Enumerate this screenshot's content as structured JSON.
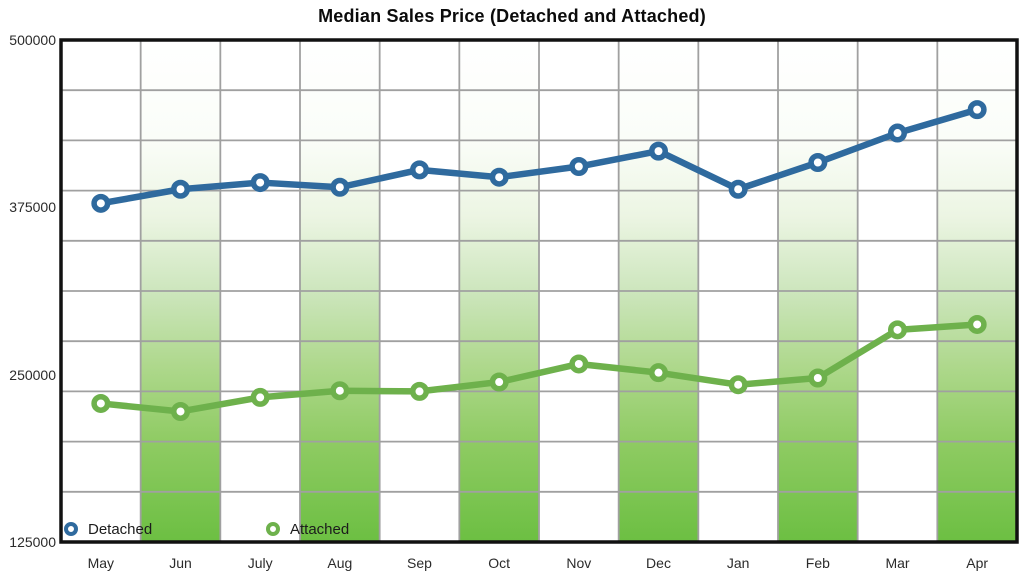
{
  "chart_data": {
    "type": "line",
    "title": "Median Sales Price (Detached and Attached)",
    "categories": [
      "May",
      "Jun",
      "July",
      "Aug",
      "Sep",
      "Oct",
      "Nov",
      "Dec",
      "Jan",
      "Feb",
      "Mar",
      "Apr"
    ],
    "series": [
      {
        "name": "Detached",
        "color": "#2f6a9e",
        "values": [
          378000,
          388500,
          393500,
          390000,
          403000,
          397500,
          405500,
          417000,
          388500,
          408500,
          430500,
          448000
        ]
      },
      {
        "name": "Attached",
        "color": "#6eb14c",
        "values": [
          228500,
          222500,
          233000,
          238000,
          237500,
          244500,
          258000,
          251500,
          242500,
          247500,
          283500,
          287500
        ]
      }
    ],
    "y_axis": {
      "min": 125000,
      "max": 500000,
      "labeled_ticks": [
        500000,
        375000,
        250000,
        125000
      ],
      "gridline_step": 37500
    },
    "legend": {
      "position": "inside-bottom-left"
    },
    "background_bands": {
      "on_categories": [
        "Jun",
        "Aug",
        "Oct",
        "Dec",
        "Feb",
        "Apr"
      ],
      "gradient_top_color": "#ffffff",
      "gradient_bottom_color": "#6cbf42"
    },
    "grid": {
      "color": "#a0a0a0",
      "border_color": "#111111"
    }
  }
}
